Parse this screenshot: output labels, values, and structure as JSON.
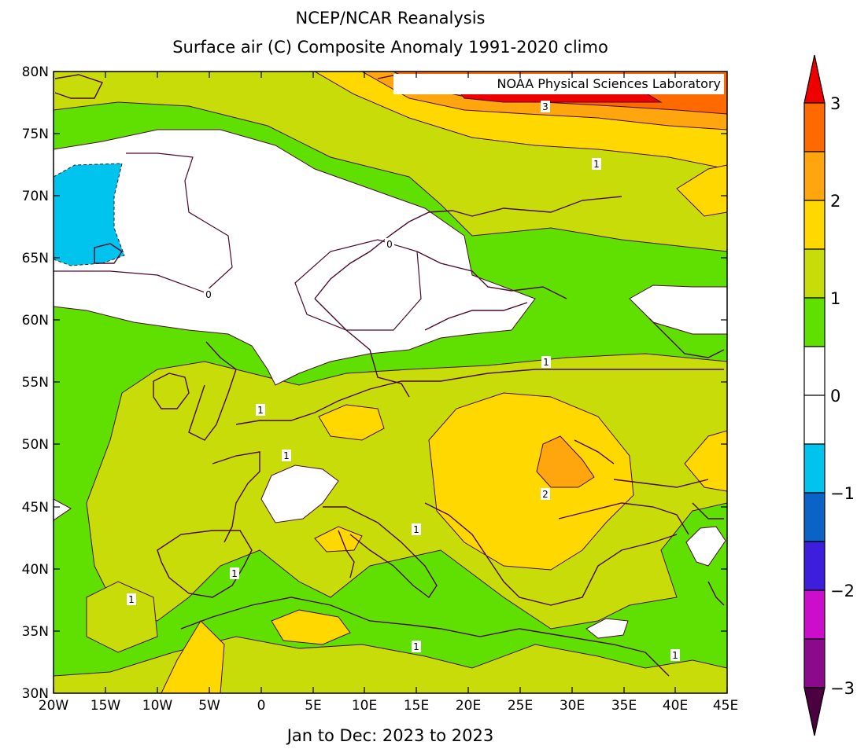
{
  "title": "NCEP/NCAR Reanalysis",
  "subtitle": "Surface air (C) Composite Anomaly 1991-2020 climo",
  "footer": "Jan to Dec: 2023 to 2023",
  "credit": "NOAA Physical Sciences Laboratory",
  "map": {
    "region": "Europe",
    "lon_range": [
      -20,
      45
    ],
    "lat_range": [
      30,
      80
    ],
    "lon_ticks": [
      "20W",
      "15W",
      "10W",
      "5W",
      "0",
      "5E",
      "10E",
      "15E",
      "20E",
      "25E",
      "30E",
      "35E",
      "40E",
      "45E"
    ],
    "lat_ticks": [
      "80N",
      "75N",
      "70N",
      "65N",
      "60N",
      "55N",
      "50N",
      "45N",
      "40N",
      "35N",
      "30N"
    ],
    "contour_labels": [
      "3",
      "1",
      "0",
      "0",
      "1",
      "1",
      "1",
      "2",
      "1",
      "1",
      "1",
      "1",
      "1"
    ]
  },
  "colorbar": {
    "ticks": [
      "3",
      "2",
      "1",
      "0",
      "−1",
      "−2",
      "−3"
    ],
    "colors": {
      "above_3": "#ee0000",
      "2.5_3": "#ff6a00",
      "2_2.5": "#ffa50d",
      "1.5_2": "#ffd800",
      "1_1.5": "#c8dc0a",
      "0.5_1": "#5fe000",
      "0_0.5": "#ffffff",
      "-0.5_0": "#ffffff",
      "-1_-0.5": "#00c4ee",
      "-1.5_-1": "#0a64c8",
      "-2_-1.5": "#3c1edc",
      "-2.5_-2": "#cc0ecc",
      "-3_-2.5": "#8b0a8b",
      "below_-3": "#4b0040"
    }
  }
}
